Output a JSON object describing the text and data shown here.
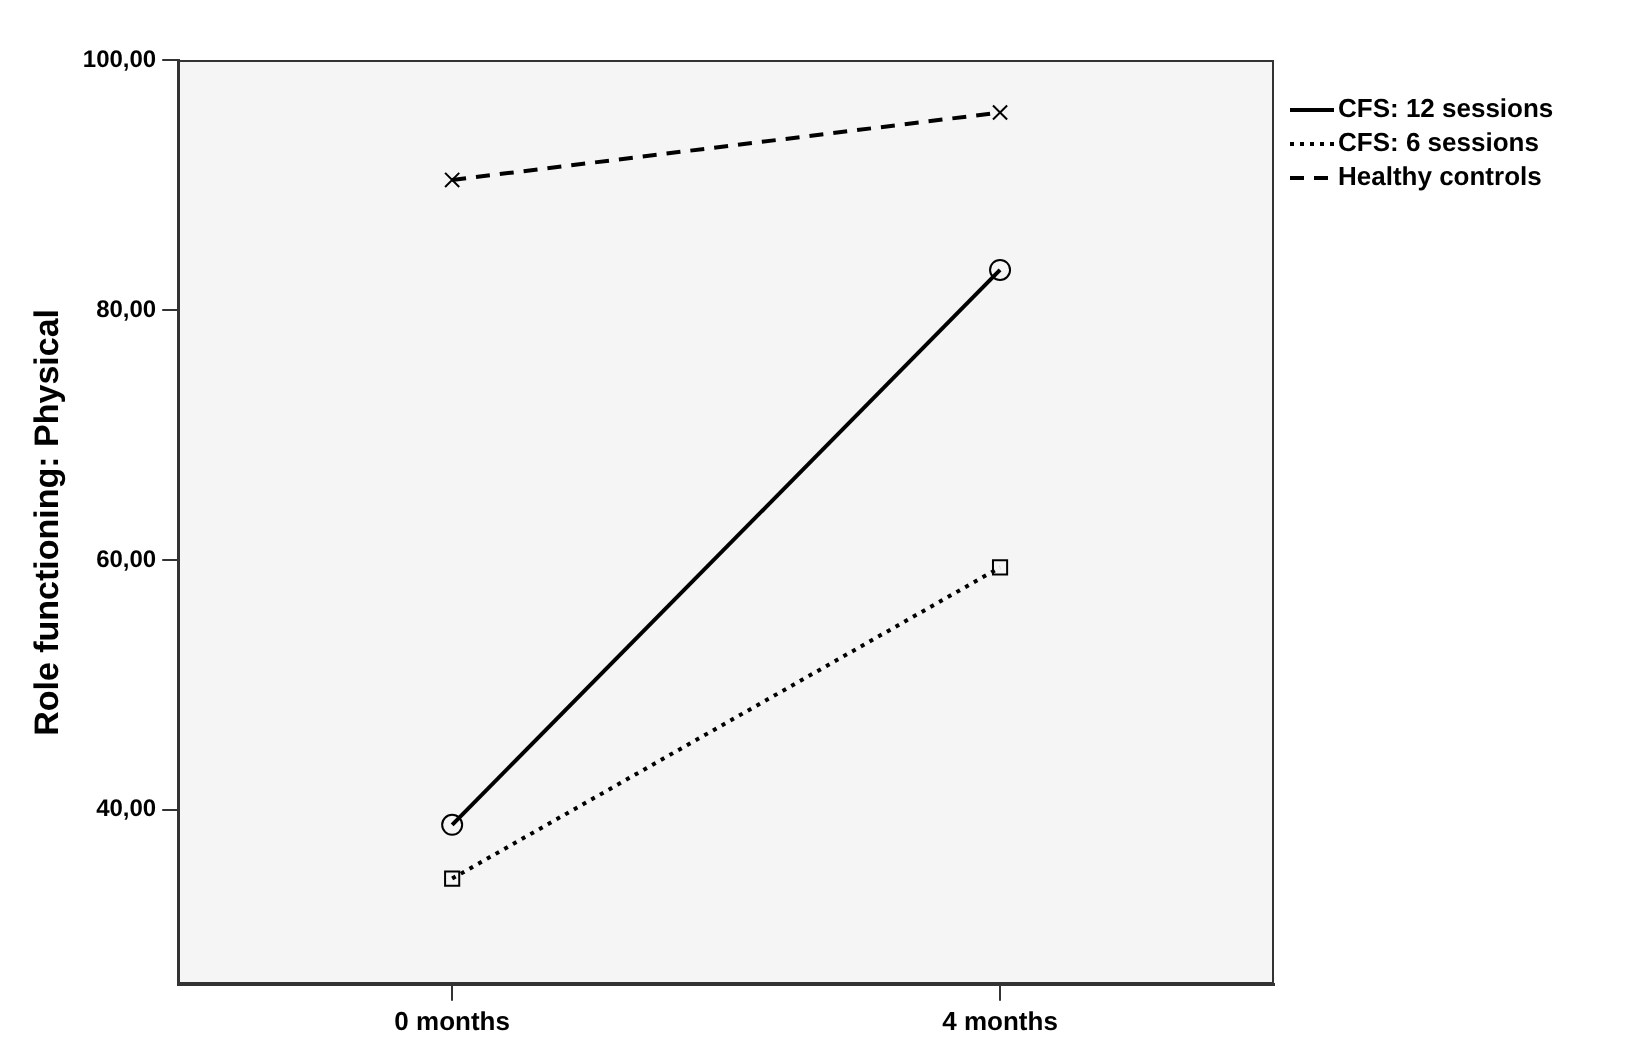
{
  "chart_data": {
    "type": "line",
    "ylabel": "Role functioning: Physical",
    "categories": [
      "0 months",
      "4 months"
    ],
    "ylim": [
      26,
      100
    ],
    "yticks": [
      {
        "value": 40,
        "label": "40,00"
      },
      {
        "value": 60,
        "label": "60,00"
      },
      {
        "value": 80,
        "label": "80,00"
      },
      {
        "value": 100,
        "label": "100,00"
      }
    ],
    "grid": false,
    "legend": "top right",
    "series": [
      {
        "name": "CFS: 12 sessions",
        "color": "#000000",
        "values": [
          38.8,
          83.2
        ],
        "marker": "circle",
        "line_style": "solid"
      },
      {
        "name": "CFS: 6 sessions",
        "color": "#000000",
        "values": [
          34.5,
          59.4
        ],
        "marker": "square",
        "line_style": "dotted"
      },
      {
        "name": "Healthy controls",
        "color": "#000000",
        "values": [
          90.4,
          95.8
        ],
        "marker": "cross",
        "line_style": "dashed"
      }
    ]
  }
}
